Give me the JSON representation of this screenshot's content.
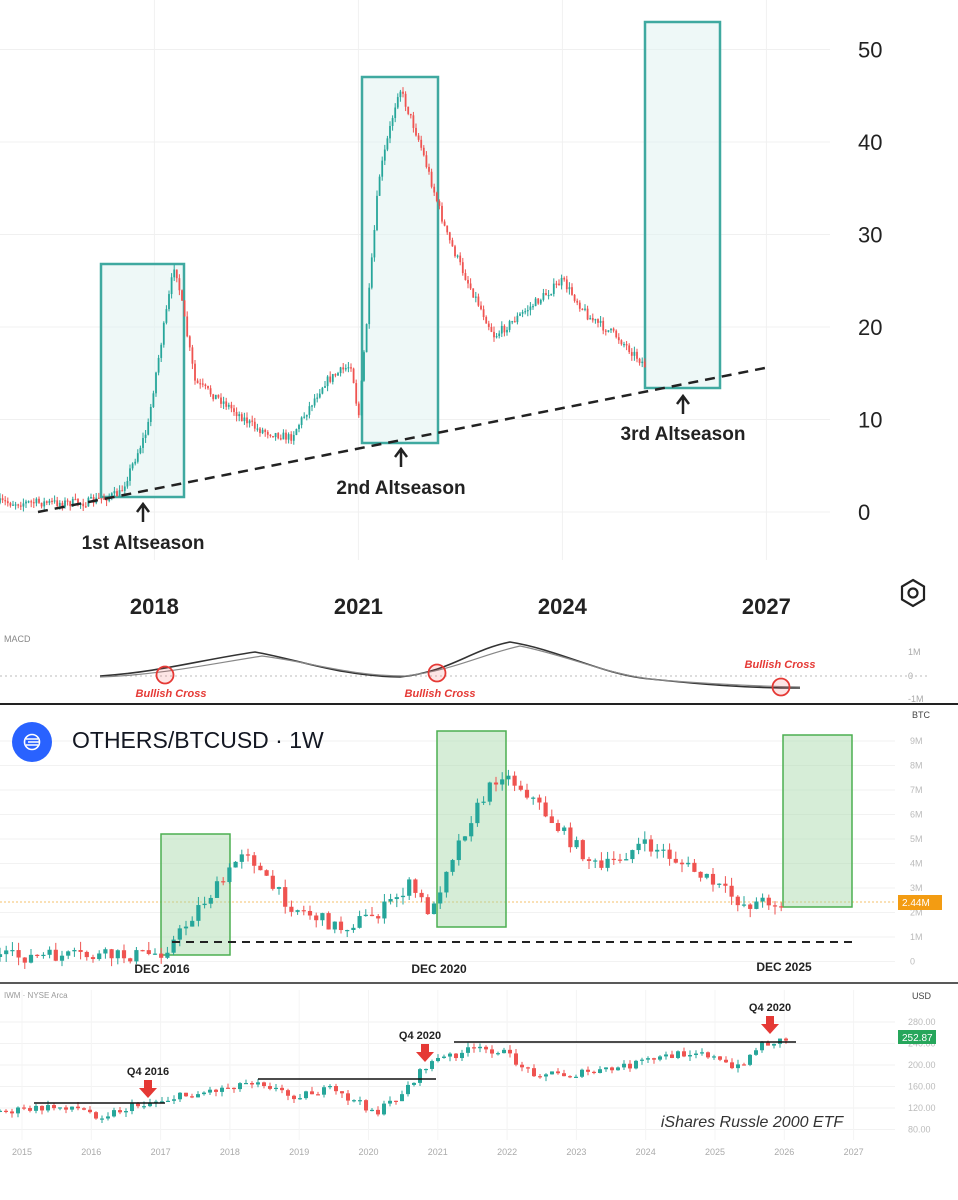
{
  "colors": {
    "up": "#26a69a",
    "down": "#ef5350",
    "box_top": "#3fa9a0",
    "box_bottom": "#4caf50",
    "price_tag": "#f39c12",
    "price_tag2": "#26a65b"
  },
  "top_panel": {
    "y_ticks": [
      "50",
      "40",
      "30",
      "20",
      "10",
      "0"
    ],
    "x_ticks": [
      "2018",
      "2021",
      "2024",
      "2027"
    ],
    "annotations": [
      "1st Altseason",
      "2nd Altseason",
      "3rd Altseason"
    ],
    "settings_icon": "hexagon-settings-icon"
  },
  "macd_panel": {
    "label": "MACD",
    "y_ticks": [
      "1M",
      "0",
      "-1M"
    ],
    "annotations": [
      "Bullish Cross",
      "Bullish Cross",
      "Bullish Cross"
    ]
  },
  "mid_panel": {
    "title": "OTHERS/BTCUSD · 1W",
    "currency": "BTC",
    "y_ticks": [
      "9M",
      "8M",
      "7M",
      "6M",
      "5M",
      "4M",
      "3M",
      "2M",
      "1M",
      "0"
    ],
    "price_tag": "2.44M",
    "annotations": [
      "DEC 2016",
      "DEC 2020",
      "DEC 2025"
    ]
  },
  "bottom_panel": {
    "label": "IWM · NYSE Arca",
    "currency": "USD",
    "y_ticks": [
      "280.00",
      "240.00",
      "200.00",
      "160.00",
      "120.00",
      "80.00"
    ],
    "price_tag": "252.87",
    "x_ticks": [
      "2015",
      "2016",
      "2017",
      "2018",
      "2019",
      "2020",
      "2021",
      "2022",
      "2023",
      "2024",
      "2025",
      "2026",
      "2027"
    ],
    "annotations": [
      "Q4 2016",
      "Q4 2020",
      "Q4 2020"
    ],
    "caption": "iShares Russle 2000 ETF"
  },
  "chart_data": [
    {
      "type": "line",
      "x": [
        2016.0,
        2017.0,
        2017.5,
        2017.9,
        2018.0,
        2018.3,
        2018.6,
        2019.0,
        2019.5,
        2020.0,
        2020.5,
        2020.9,
        2021.0,
        2021.3,
        2021.6,
        2021.9,
        2022.3,
        2022.6,
        2023.0,
        2023.5,
        2024.0,
        2024.4,
        2024.8,
        2025.2,
        2025.4
      ],
      "values": [
        1,
        1,
        2,
        9,
        14,
        27,
        14,
        12,
        9,
        8,
        14,
        16,
        10,
        36,
        46,
        40,
        30,
        25,
        19,
        22,
        25,
        21,
        19,
        16,
        13
      ],
      "y_ticks": [
        0,
        10,
        20,
        30,
        40,
        50
      ],
      "x_ticks": [
        2018,
        2021,
        2024,
        2027
      ],
      "ylim": [
        0,
        50
      ],
      "annotations": [
        "1st Altseason",
        "2nd Altseason",
        "3rd Altseason"
      ],
      "grid": true
    },
    {
      "type": "line",
      "label": "MACD",
      "y_ticks": [
        "1M",
        "0",
        "-1M"
      ],
      "annotations": [
        "Bullish Cross",
        "Bullish Cross",
        "Bullish Cross"
      ]
    },
    {
      "type": "bar",
      "y_ticks": [
        "9M",
        "8M",
        "7M",
        "6M",
        "5M",
        "4M",
        "3M",
        "2M",
        "1M",
        "0"
      ],
      "annotations": [
        "DEC 2016",
        "DEC 2020",
        "DEC 2025"
      ]
    },
    {
      "type": "bar",
      "y_ticks": [
        "280.00",
        "240.00",
        "200.00",
        "160.00",
        "120.00",
        "80.00"
      ],
      "x_ticks": [
        "2015",
        "2016",
        "2017",
        "2018",
        "2019",
        "2020",
        "2021",
        "2022",
        "2023",
        "2024",
        "2025",
        "2026",
        "2027"
      ],
      "annotations": [
        "Q4 2016",
        "Q4 2020",
        "Q4 2020"
      ]
    }
  ]
}
